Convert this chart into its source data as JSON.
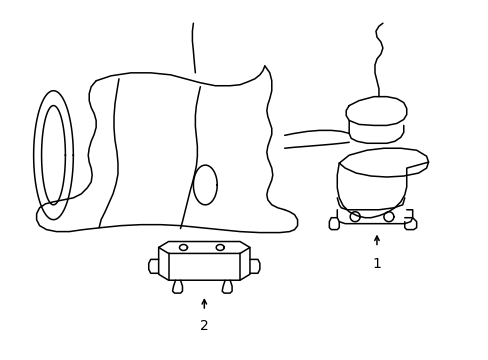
{
  "background_color": "#ffffff",
  "line_color": "#000000",
  "line_width": 1.1,
  "figsize": [
    4.89,
    3.6
  ],
  "dpi": 100
}
